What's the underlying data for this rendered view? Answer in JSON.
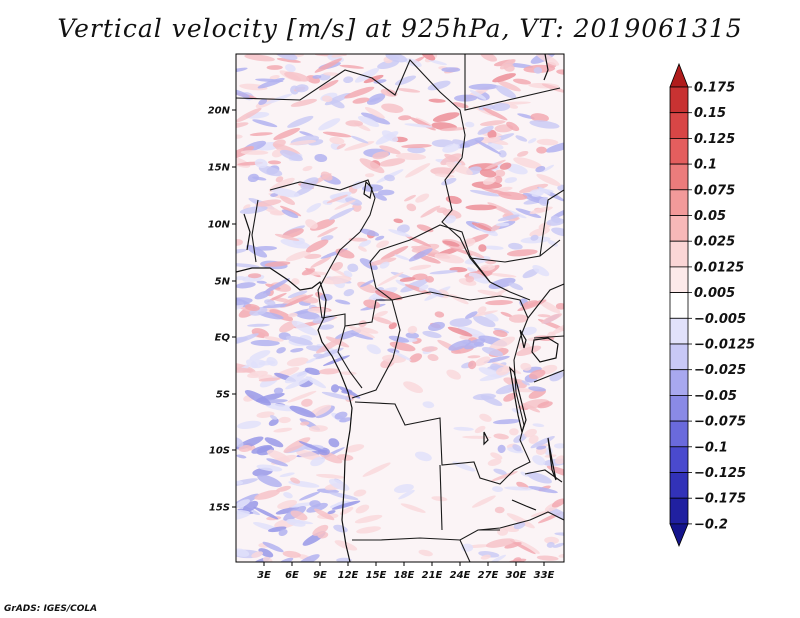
{
  "title": "Vertical velocity [m/s] at 925hPa, VT: 2019061315",
  "footer": "GrADS: IGES/COLA",
  "map": {
    "lat_labels": [
      "20N",
      "15N",
      "10N",
      "5N",
      "EQ",
      "5S",
      "10S",
      "15S"
    ],
    "lon_labels": [
      "3E",
      "6E",
      "9E",
      "12E",
      "15E",
      "18E",
      "21E",
      "24E",
      "27E",
      "30E",
      "33E"
    ]
  },
  "colorbar": {
    "labels": [
      "0.175",
      "0.15",
      "0.125",
      "0.1",
      "0.075",
      "0.05",
      "0.025",
      "0.0125",
      "0.005",
      "−0.005",
      "−0.0125",
      "−0.025",
      "−0.05",
      "−0.075",
      "−0.1",
      "−0.125",
      "−0.175",
      "−0.2"
    ],
    "colors": [
      "#b01c1c",
      "#c83232",
      "#d84646",
      "#e45e5e",
      "#ec7c7c",
      "#f29a9a",
      "#f7b8b8",
      "#fbd6d6",
      "#fdeaea",
      "#ffffff",
      "#e2e2fb",
      "#c8c8f6",
      "#a8a8ef",
      "#8a8ae6",
      "#6a6adc",
      "#4a4ace",
      "#3232b8",
      "#2020a0",
      "#14148c"
    ]
  }
}
